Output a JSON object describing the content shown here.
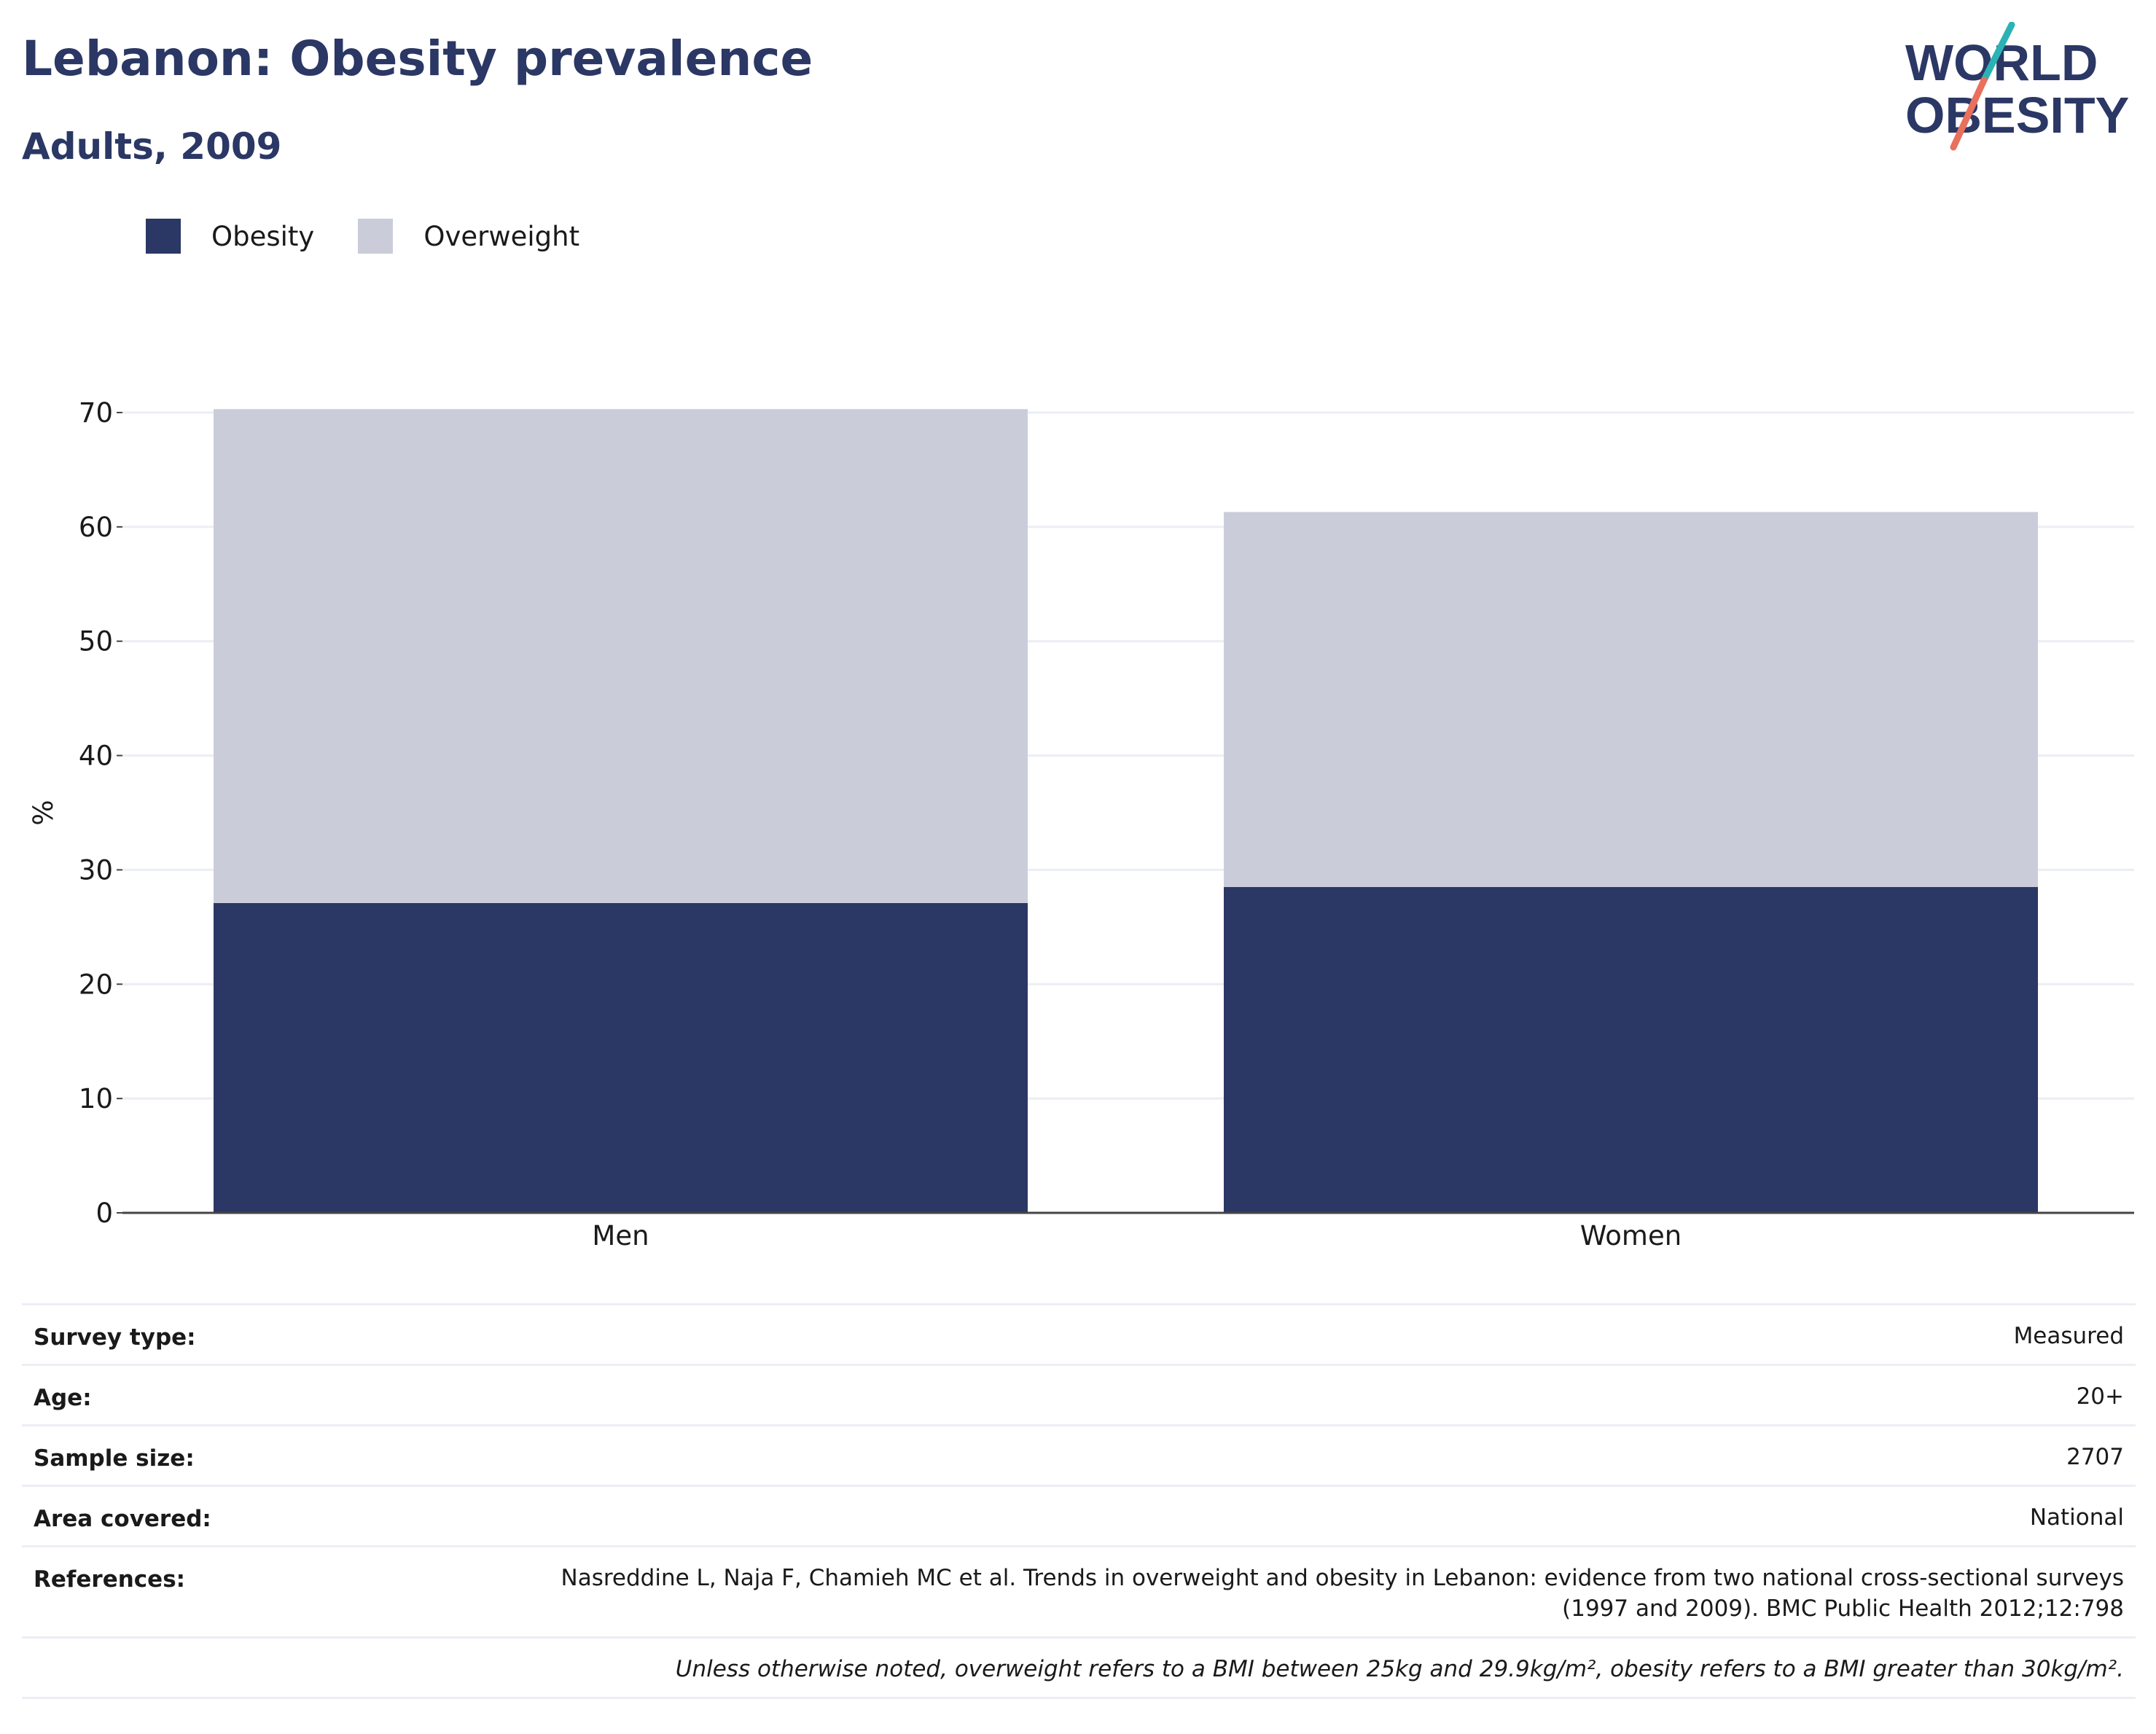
{
  "header": {
    "title": "Lebanon: Obesity prevalence",
    "subtitle": "Adults, 2009",
    "logo": {
      "line1": "WORLD",
      "line2": "OBESITY"
    }
  },
  "colors": {
    "obesity": "#2b3764",
    "overweight": "#cacdd9",
    "gridline": "#eceef6",
    "logo_teal": "#2ab2b4",
    "logo_coral": "#e8705d"
  },
  "legend": {
    "items": [
      {
        "label": "Obesity",
        "color": "#2b3764"
      },
      {
        "label": "Overweight",
        "color": "#cacdd9"
      }
    ],
    "position": "top-left"
  },
  "chart_data": {
    "type": "bar",
    "stacked": true,
    "categories": [
      "Men",
      "Women"
    ],
    "series": [
      {
        "name": "Obesity",
        "values": [
          27.1,
          28.5
        ]
      },
      {
        "name": "Overweight",
        "values": [
          43.2,
          32.8
        ]
      }
    ],
    "title": "",
    "xlabel": "",
    "ylabel": "%",
    "ylim": [
      0,
      70
    ],
    "yticks": [
      0,
      10,
      20,
      30,
      40,
      50,
      60,
      70
    ],
    "grid": true
  },
  "info": {
    "rows": [
      {
        "key": "Survey type:",
        "value": "Measured"
      },
      {
        "key": "Age:",
        "value": "20+"
      },
      {
        "key": "Sample size:",
        "value": "2707"
      },
      {
        "key": "Area covered:",
        "value": "National"
      }
    ],
    "references": {
      "key": "References:",
      "value": "Nasreddine L, Naja F, Chamieh MC et al. Trends in overweight and obesity in Lebanon: evidence from two national cross-sectional surveys (1997 and 2009). BMC Public Health 2012;12:798"
    },
    "footnote": "Unless otherwise noted, overweight refers to a BMI between 25kg and 29.9kg/m², obesity refers to a BMI greater than 30kg/m²."
  }
}
